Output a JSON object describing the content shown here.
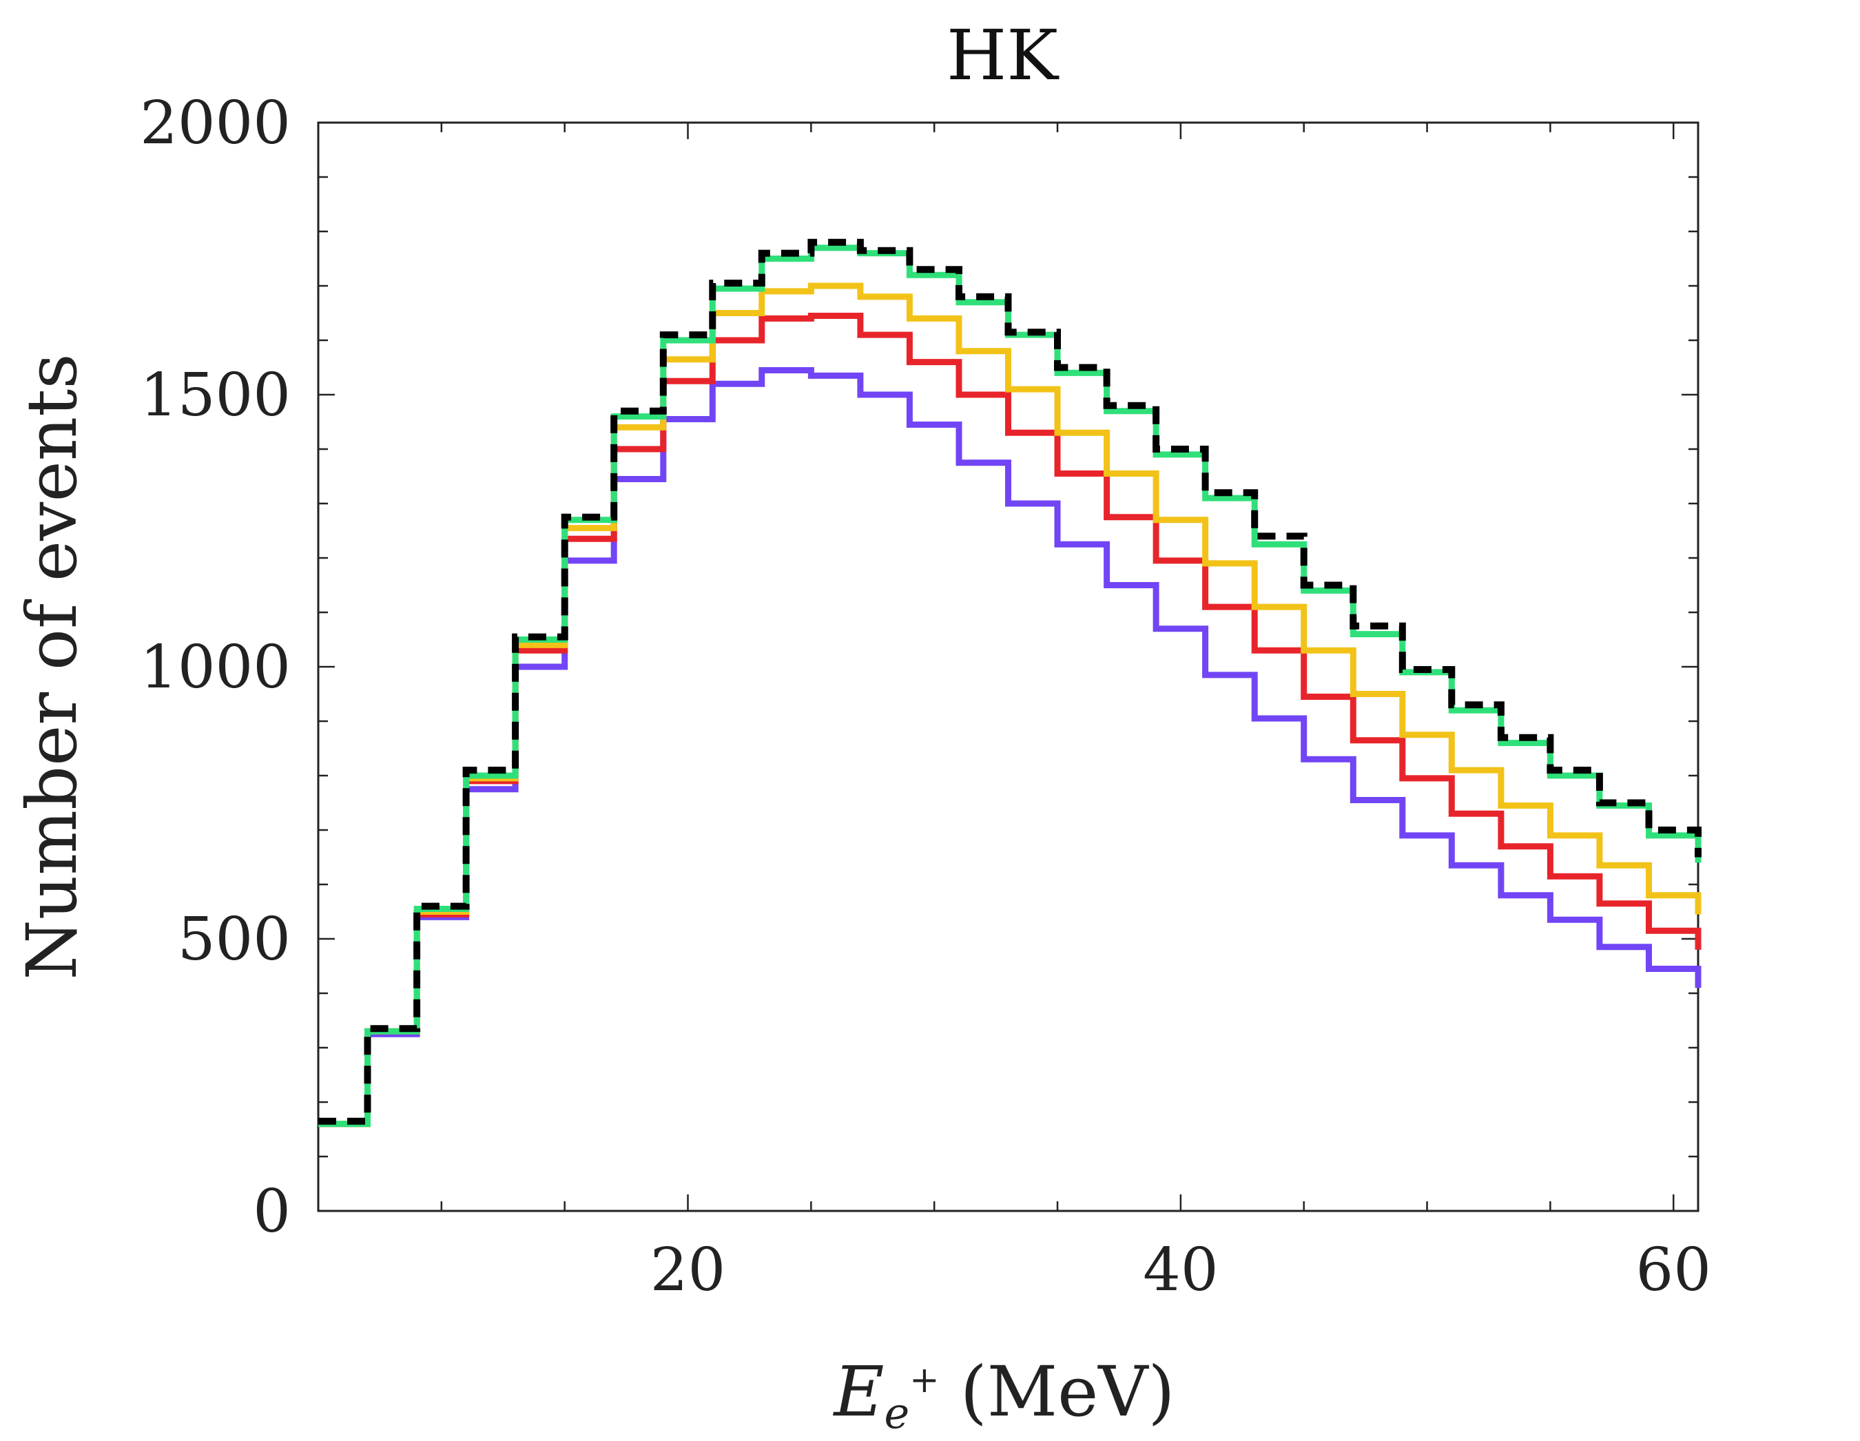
{
  "chart_data": {
    "type": "line",
    "title": "HK",
    "xlabel": "E_{e+} (MeV)",
    "xlabel_main": "E",
    "xlabel_sub": "e",
    "xlabel_sup": "+",
    "xlabel_unit": "(MeV)",
    "ylabel": "Number of events",
    "xlim": [
      5,
      61
    ],
    "ylim": [
      0,
      2000
    ],
    "xticks": [
      20,
      40,
      60
    ],
    "yticks": [
      0,
      500,
      1000,
      1500,
      2000
    ],
    "xtick_labels": [
      "20",
      "40",
      "60"
    ],
    "ytick_labels": [
      "0",
      "500",
      "1000",
      "1500",
      "2000"
    ],
    "bin_edges": [
      5,
      7,
      9,
      11,
      13,
      15,
      17,
      19,
      21,
      23,
      25,
      27,
      29,
      31,
      33,
      35,
      37,
      39,
      41,
      43,
      45,
      47,
      49,
      51,
      53,
      55,
      57,
      59,
      61
    ],
    "series": [
      {
        "name": "total (dashed)",
        "color": "#000000",
        "dashed": true,
        "values": [
          165,
          335,
          560,
          810,
          1055,
          1275,
          1470,
          1610,
          1705,
          1760,
          1780,
          1765,
          1730,
          1680,
          1615,
          1550,
          1480,
          1400,
          1320,
          1240,
          1150,
          1075,
          995,
          930,
          870,
          810,
          750,
          700,
          650
        ]
      },
      {
        "name": "green",
        "color": "#2fe07a",
        "dashed": false,
        "values": [
          160,
          330,
          555,
          800,
          1050,
          1270,
          1460,
          1600,
          1695,
          1750,
          1770,
          1760,
          1720,
          1670,
          1610,
          1540,
          1470,
          1390,
          1310,
          1225,
          1140,
          1060,
          990,
          920,
          860,
          800,
          745,
          690,
          640
        ]
      },
      {
        "name": "yellow",
        "color": "#f2c218",
        "dashed": false,
        "values": [
          160,
          330,
          550,
          795,
          1040,
          1255,
          1440,
          1565,
          1650,
          1690,
          1700,
          1680,
          1640,
          1580,
          1510,
          1430,
          1355,
          1270,
          1190,
          1110,
          1030,
          950,
          875,
          810,
          745,
          690,
          635,
          580,
          545
        ]
      },
      {
        "name": "red",
        "color": "#e8242b",
        "dashed": false,
        "values": [
          160,
          330,
          545,
          790,
          1030,
          1235,
          1400,
          1525,
          1600,
          1640,
          1645,
          1610,
          1560,
          1500,
          1430,
          1355,
          1275,
          1195,
          1110,
          1030,
          945,
          865,
          795,
          730,
          670,
          615,
          565,
          515,
          480
        ]
      },
      {
        "name": "purple",
        "color": "#7145f5",
        "dashed": false,
        "values": [
          160,
          325,
          540,
          775,
          1000,
          1195,
          1345,
          1455,
          1520,
          1545,
          1535,
          1500,
          1445,
          1375,
          1300,
          1225,
          1150,
          1070,
          985,
          905,
          830,
          755,
          690,
          635,
          580,
          535,
          485,
          445,
          410
        ]
      }
    ]
  }
}
